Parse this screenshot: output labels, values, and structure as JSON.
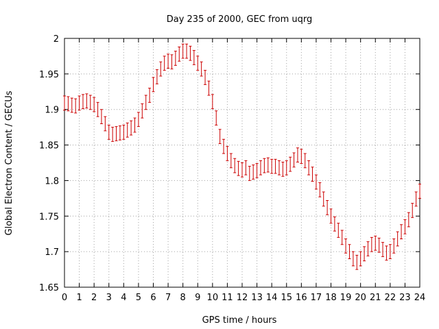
{
  "chart_data": {
    "type": "line",
    "title": "Day 235 of 2000, GEC from uqrg",
    "xlabel": "GPS time / hours",
    "ylabel": "Global Electron Content / GECUs",
    "xlim": [
      0,
      24
    ],
    "ylim": [
      1.65,
      2.0
    ],
    "xticks": [
      0,
      1,
      2,
      3,
      4,
      5,
      6,
      7,
      8,
      9,
      10,
      11,
      12,
      13,
      14,
      15,
      16,
      17,
      18,
      19,
      20,
      21,
      22,
      23,
      24
    ],
    "xtick_labels": [
      "0",
      "1",
      "2",
      "3",
      "4",
      "5",
      "6",
      "7",
      "8",
      "9",
      "10",
      "11",
      "12",
      "13",
      "14",
      "15",
      "16",
      "17",
      "18",
      "19",
      "20",
      "21",
      "22",
      "23",
      "24"
    ],
    "yticks": [
      1.65,
      1.7,
      1.75,
      1.8,
      1.85,
      1.9,
      1.95,
      2.0
    ],
    "ytick_labels": [
      "1.65",
      "1.7",
      "1.75",
      "1.8",
      "1.85",
      "1.9",
      "1.95",
      "2"
    ],
    "grid": true,
    "error_bar_halfwidth": 0.01,
    "series": [
      {
        "color": "#cc0000",
        "style": "errorbars",
        "x": [
          0,
          0.25,
          0.5,
          0.75,
          1,
          1.25,
          1.5,
          1.75,
          2,
          2.25,
          2.5,
          2.75,
          3,
          3.25,
          3.5,
          3.75,
          4,
          4.25,
          4.5,
          4.75,
          5,
          5.25,
          5.5,
          5.75,
          6,
          6.25,
          6.5,
          6.75,
          7,
          7.25,
          7.5,
          7.75,
          8,
          8.25,
          8.5,
          8.75,
          9,
          9.25,
          9.5,
          9.75,
          10,
          10.25,
          10.5,
          10.75,
          11,
          11.25,
          11.5,
          11.75,
          12,
          12.25,
          12.5,
          12.75,
          13,
          13.25,
          13.5,
          13.75,
          14,
          14.25,
          14.5,
          14.75,
          15,
          15.25,
          15.5,
          15.75,
          16,
          16.25,
          16.5,
          16.75,
          17,
          17.25,
          17.5,
          17.75,
          18,
          18.25,
          18.5,
          18.75,
          19,
          19.25,
          19.5,
          19.75,
          20,
          20.25,
          20.5,
          20.75,
          21,
          21.25,
          21.5,
          21.75,
          22,
          22.25,
          22.5,
          22.75,
          23,
          23.25,
          23.5,
          23.75,
          24
        ],
        "y": [
          1.909,
          1.908,
          1.906,
          1.905,
          1.909,
          1.911,
          1.912,
          1.91,
          1.907,
          1.9,
          1.89,
          1.88,
          1.868,
          1.865,
          1.866,
          1.867,
          1.868,
          1.871,
          1.874,
          1.878,
          1.886,
          1.898,
          1.91,
          1.92,
          1.935,
          1.946,
          1.957,
          1.965,
          1.968,
          1.967,
          1.972,
          1.978,
          1.982,
          1.982,
          1.979,
          1.973,
          1.965,
          1.957,
          1.945,
          1.93,
          1.911,
          1.888,
          1.862,
          1.848,
          1.838,
          1.828,
          1.821,
          1.817,
          1.815,
          1.818,
          1.81,
          1.812,
          1.814,
          1.818,
          1.821,
          1.822,
          1.82,
          1.82,
          1.818,
          1.816,
          1.818,
          1.823,
          1.829,
          1.836,
          1.834,
          1.828,
          1.818,
          1.809,
          1.798,
          1.787,
          1.774,
          1.762,
          1.75,
          1.739,
          1.73,
          1.72,
          1.708,
          1.7,
          1.69,
          1.685,
          1.69,
          1.697,
          1.704,
          1.71,
          1.712,
          1.709,
          1.703,
          1.698,
          1.7,
          1.708,
          1.718,
          1.728,
          1.735,
          1.745,
          1.758,
          1.774,
          1.785
        ]
      }
    ]
  }
}
